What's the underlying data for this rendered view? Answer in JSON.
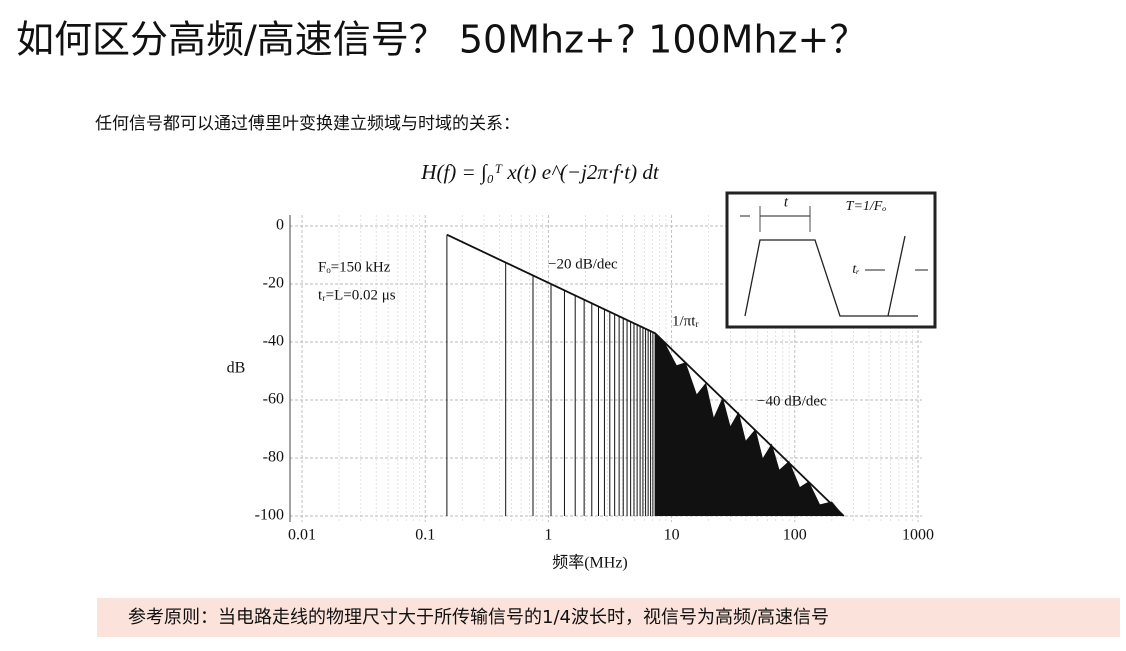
{
  "header": {
    "title": "如何区分高频/高速信号？ 50Mhz+? 100Mhz+？"
  },
  "intro": "任何信号都可以通过傅里叶变换建立频域与时域的关系：",
  "formula": "H(f) = ∫₀ᵀ x(t) e^(−j2π·f·t) dt",
  "chart_data": {
    "type": "line",
    "xlabel": "频率(MHz)",
    "ylabel": "dB",
    "xscale": "log",
    "xlim": [
      0.01,
      1000
    ],
    "xticks": [
      0.01,
      0.1,
      1,
      10,
      100,
      1000
    ],
    "ylim": [
      -100,
      0
    ],
    "yticks": [
      0,
      -20,
      -40,
      -60,
      -80,
      -100
    ],
    "grid": true,
    "annotations": [
      "Fₒ=150 kHz",
      "tᵣ=L=0.02 μs",
      "−20 dB/dec",
      "1/πtᵣ",
      "−40 dB/dec"
    ],
    "series": [
      {
        "type": "stem",
        "color": "#111111",
        "x": [
          0.15,
          0.45,
          0.75,
          1.05,
          1.35,
          1.65,
          1.95,
          2.25,
          2.55,
          2.85,
          3.15,
          3.45,
          3.75,
          4.05,
          4.35,
          4.65,
          4.95,
          5.25,
          5.55,
          5.85,
          6.15,
          6.45,
          6.75,
          7.05,
          7.35
        ],
        "values": [
          -3,
          -12.5,
          -17,
          -19.9,
          -22.1,
          -23.8,
          -25.3,
          -26.5,
          -27.6,
          -28.6,
          -29.4,
          -30.2,
          -31,
          -31.6,
          -32.2,
          -32.8,
          -33.4,
          -33.9,
          -34.4,
          -34.8,
          -35.3,
          -35.7,
          -36.1,
          -36.4,
          -36.8
        ]
      },
      {
        "type": "area",
        "color": "#111111",
        "x": [
          7.35,
          9,
          11,
          13,
          16,
          19,
          22,
          26,
          30,
          35,
          40,
          48,
          55,
          65,
          75,
          90,
          110,
          130,
          160,
          200,
          250
        ],
        "values": [
          -37,
          -41,
          -48,
          -47,
          -58,
          -54,
          -66,
          -59,
          -69,
          -64,
          -74,
          -70,
          -80,
          -75,
          -84,
          -81,
          -90,
          -88,
          -96,
          -95,
          -100
        ]
      },
      {
        "type": "line",
        "color": "#111111",
        "x": [
          0.15,
          7.35,
          250
        ],
        "values": [
          -3,
          -37,
          -100
        ]
      }
    ]
  },
  "inset": {
    "labels": [
      "t",
      "T=1/Fₒ",
      "tᵣ"
    ]
  },
  "footnote": "参考原则：当电路走线的物理尺寸大于所传输信号的1/4波长时，视信号为高频/高速信号"
}
